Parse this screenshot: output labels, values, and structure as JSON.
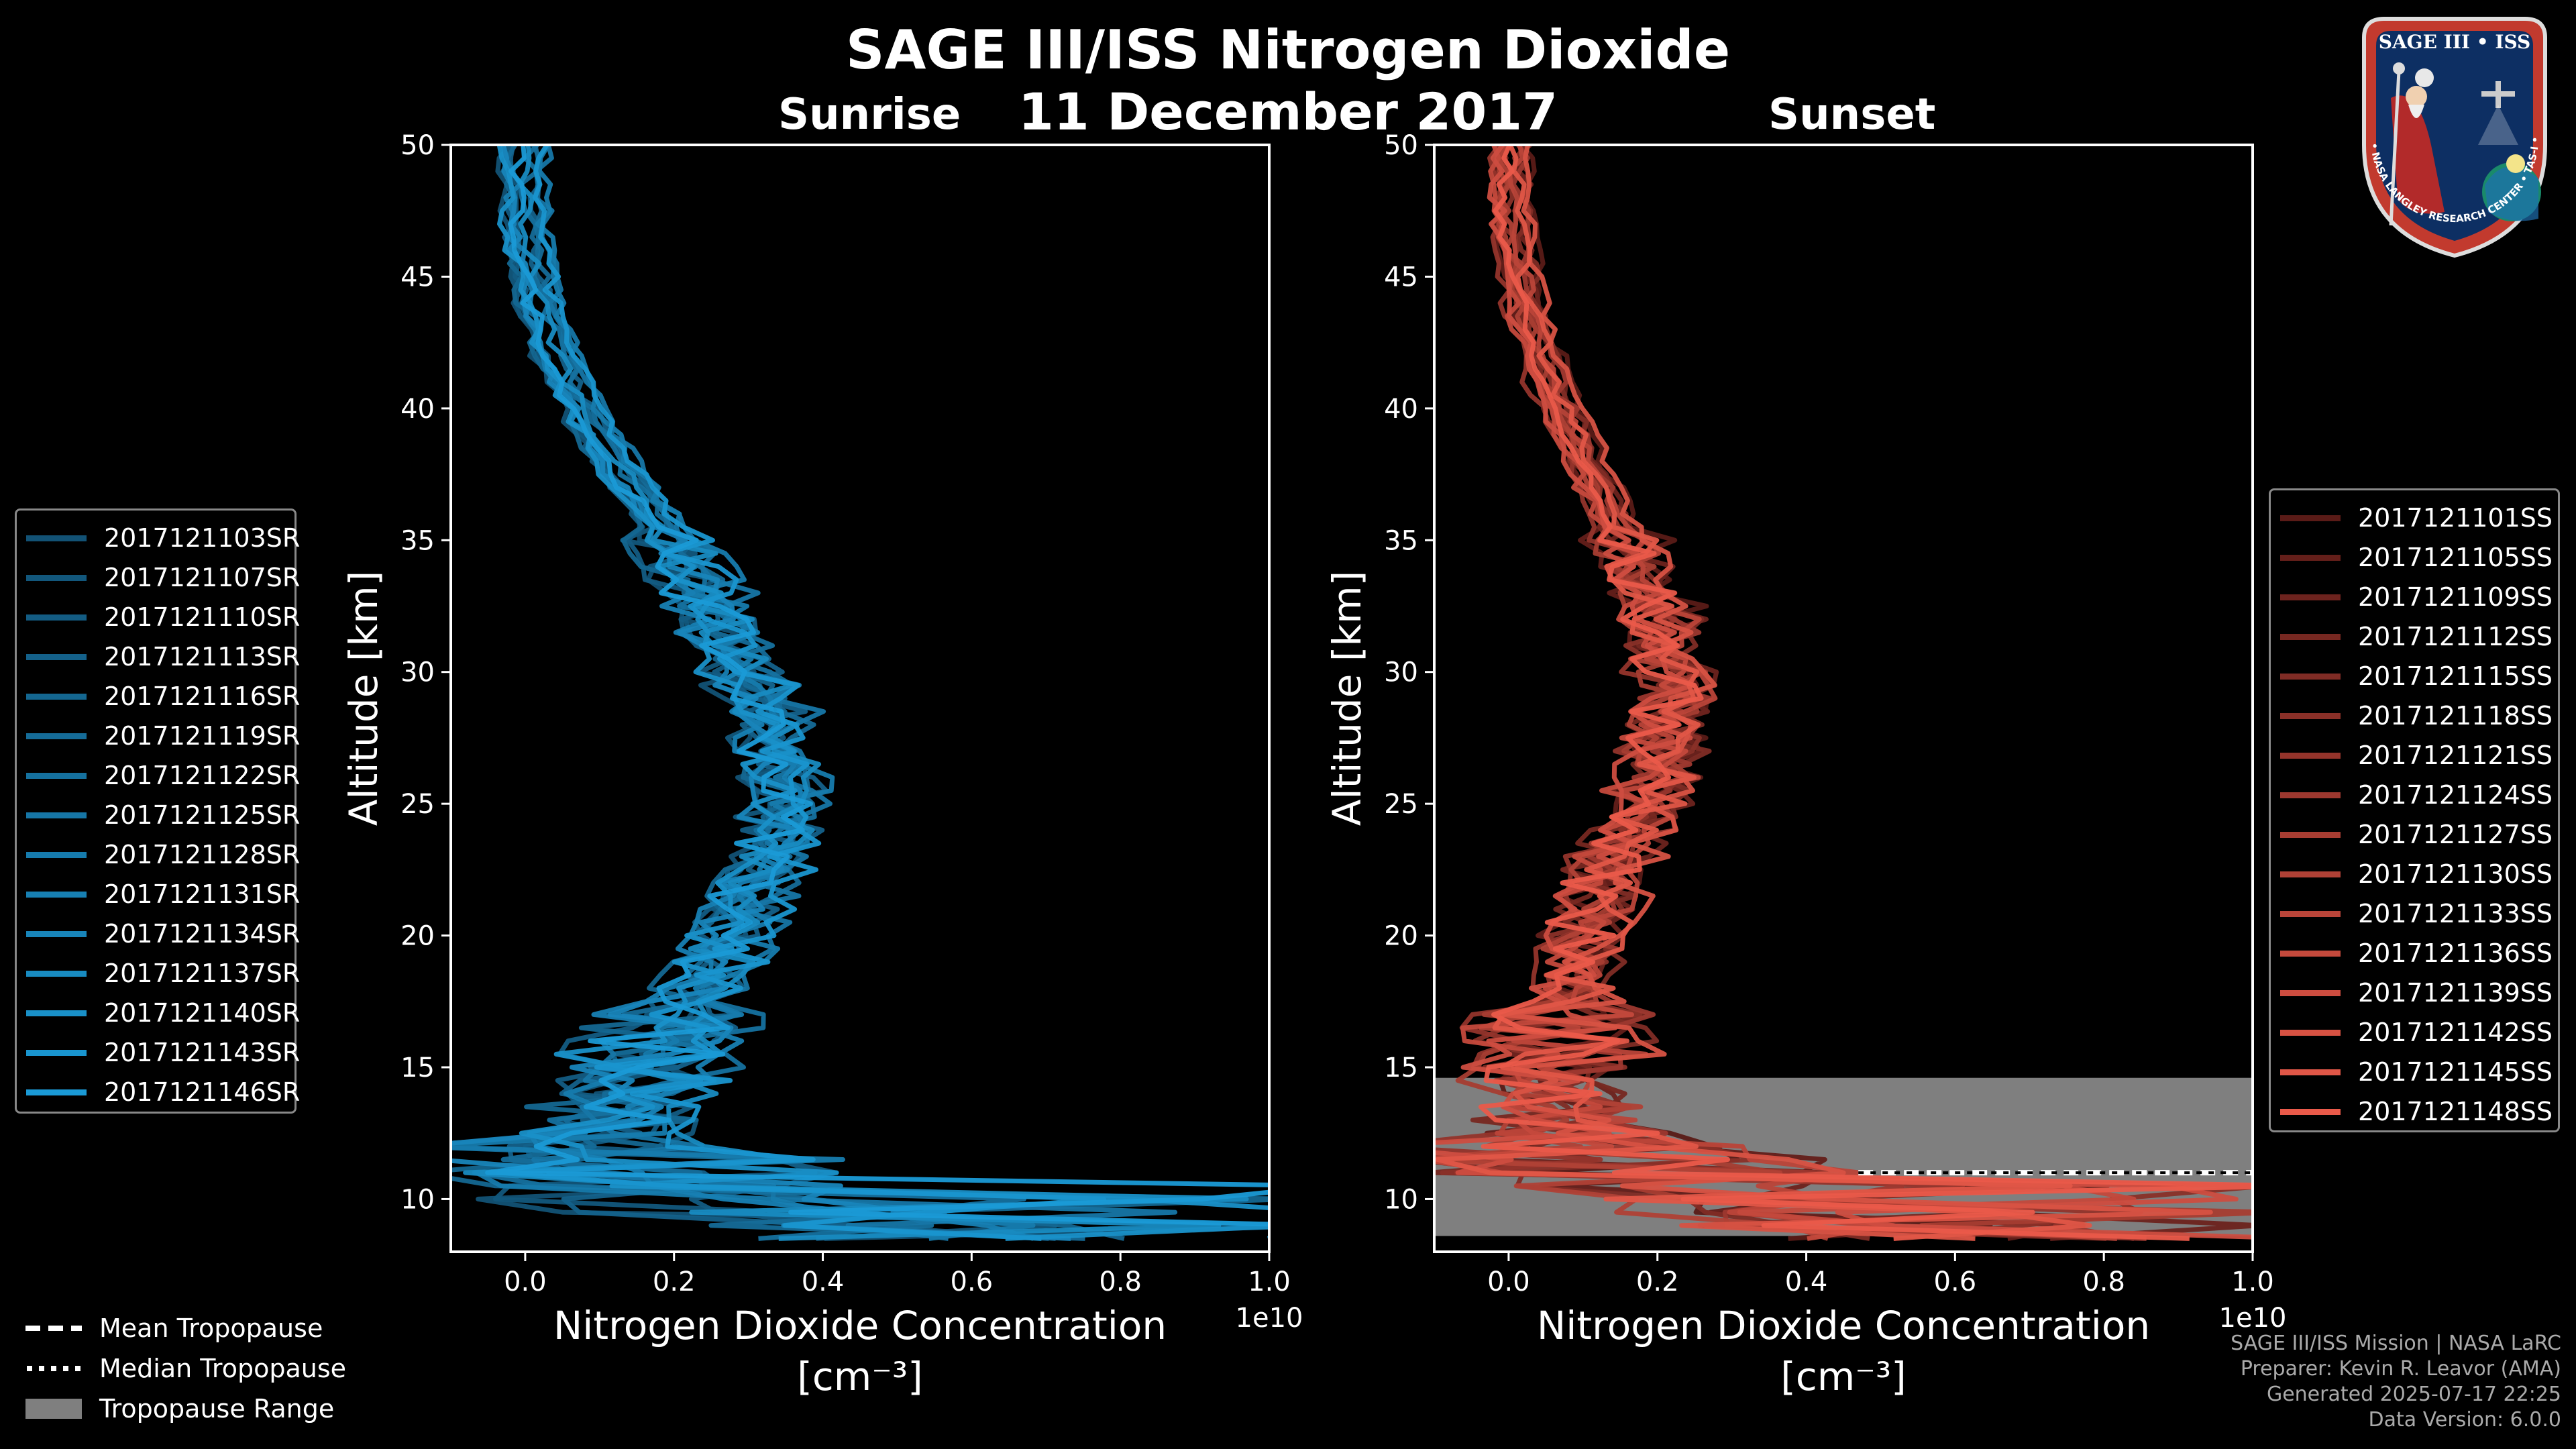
{
  "header": {
    "title": "SAGE III/ISS Nitrogen Dioxide",
    "date": "11 December 2017",
    "left_label": "Sunrise",
    "right_label": "Sunset"
  },
  "badge": {
    "title": "SAGE III • ISS",
    "ring_text": "BALL • NASA LANGLEY RESEARCH CENTER • TAS-I • ESA"
  },
  "footer": {
    "line1": "SAGE III/ISS Mission | NASA LaRC",
    "line2": "Preparer: Kevin R. Leavor (AMA)",
    "line3": "Generated 2025-07-17 22:25",
    "line4": "Data Version: 6.0.0"
  },
  "tropopause_legend": {
    "mean": "Mean Tropopause",
    "median": "Median Tropopause",
    "range": "Tropopause Range"
  },
  "colors": {
    "background": "#000000",
    "sunrise": "#1a9ad6",
    "sunset": "#ea5a4a",
    "tropopause_range": "#7f7f7f"
  },
  "chart_data": [
    {
      "type": "line",
      "title": "Sunrise",
      "xlabel": "Nitrogen Dioxide Concentration",
      "xlabel_unit": "[cm⁻³]",
      "x_scale_label": "1e10",
      "ylabel": "Altitude [km]",
      "xlim": [
        -0.1,
        1.0
      ],
      "ylim": [
        8,
        50
      ],
      "x_ticks": [
        "0.0",
        "0.2",
        "0.4",
        "0.6",
        "0.8",
        "1.0"
      ],
      "y_ticks": [
        "10",
        "15",
        "20",
        "25",
        "30",
        "35",
        "40",
        "45",
        "50"
      ],
      "legend_position": "left",
      "series": [
        {
          "name": "2017121103SR"
        },
        {
          "name": "2017121107SR"
        },
        {
          "name": "2017121110SR"
        },
        {
          "name": "2017121113SR"
        },
        {
          "name": "2017121116SR"
        },
        {
          "name": "2017121119SR"
        },
        {
          "name": "2017121122SR"
        },
        {
          "name": "2017121125SR"
        },
        {
          "name": "2017121128SR"
        },
        {
          "name": "2017121131SR"
        },
        {
          "name": "2017121134SR"
        },
        {
          "name": "2017121137SR"
        },
        {
          "name": "2017121140SR"
        },
        {
          "name": "2017121143SR"
        },
        {
          "name": "2017121146SR"
        }
      ],
      "profile_mean_x": [
        0.0,
        0.0,
        0.02,
        0.06,
        0.12,
        0.2,
        0.26,
        0.32,
        0.36,
        0.34,
        0.28,
        0.22,
        0.15,
        0.12,
        0.2,
        0.6
      ],
      "profile_alt": [
        50,
        47,
        44,
        41,
        38,
        35,
        32,
        29,
        26,
        23,
        20,
        17,
        14,
        12,
        10,
        8.5
      ],
      "tropopause": null
    },
    {
      "type": "line",
      "title": "Sunset",
      "xlabel": "Nitrogen Dioxide Concentration",
      "xlabel_unit": "[cm⁻³]",
      "x_scale_label": "1e10",
      "ylabel": "Altitude [km]",
      "xlim": [
        -0.1,
        1.0
      ],
      "ylim": [
        8,
        50
      ],
      "x_ticks": [
        "0.0",
        "0.2",
        "0.4",
        "0.6",
        "0.8",
        "1.0"
      ],
      "y_ticks": [
        "10",
        "15",
        "20",
        "25",
        "30",
        "35",
        "40",
        "45",
        "50"
      ],
      "legend_position": "right",
      "series": [
        {
          "name": "2017121101SS"
        },
        {
          "name": "2017121105SS"
        },
        {
          "name": "2017121109SS"
        },
        {
          "name": "2017121112SS"
        },
        {
          "name": "2017121115SS"
        },
        {
          "name": "2017121118SS"
        },
        {
          "name": "2017121121SS"
        },
        {
          "name": "2017121124SS"
        },
        {
          "name": "2017121127SS"
        },
        {
          "name": "2017121130SS"
        },
        {
          "name": "2017121133SS"
        },
        {
          "name": "2017121136SS"
        },
        {
          "name": "2017121139SS"
        },
        {
          "name": "2017121142SS"
        },
        {
          "name": "2017121145SS"
        },
        {
          "name": "2017121148SS"
        }
      ],
      "profile_mean_x": [
        0.0,
        0.0,
        0.02,
        0.05,
        0.1,
        0.15,
        0.2,
        0.22,
        0.2,
        0.14,
        0.1,
        0.08,
        0.05,
        0.1,
        0.3,
        0.6
      ],
      "profile_alt": [
        50,
        47,
        44,
        41,
        38,
        35,
        32,
        29,
        26,
        23,
        20,
        17,
        14,
        12,
        10,
        8.5
      ],
      "tropopause": {
        "range": [
          8.6,
          14.6
        ],
        "mean": 11.0,
        "median": 11.0,
        "marker_x_start": 0.47
      }
    }
  ]
}
